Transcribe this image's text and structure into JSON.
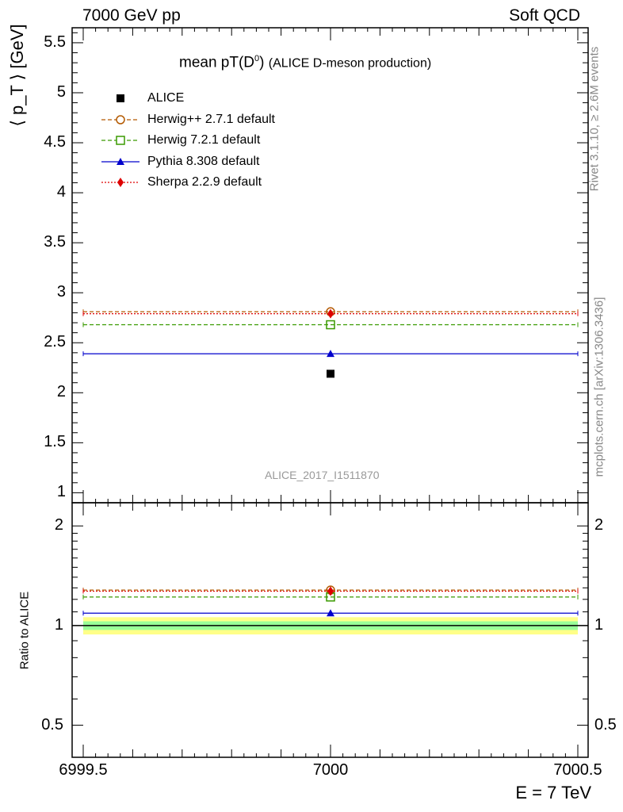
{
  "header": {
    "left": "7000 GeV pp",
    "right": "Soft QCD"
  },
  "title": {
    "main": "mean pT(D",
    "sup": "0",
    "close": ")",
    "sub": "(ALICE D-meson production)"
  },
  "side_labels": {
    "rivet": "Rivet 3.1.10, ≥ 2.6M events",
    "mcplots": "mcplots.cern.ch [arXiv:1306.3436]"
  },
  "watermark": "ALICE_2017_I1511870",
  "chart_data": [
    {
      "type": "scatter",
      "panel": "main",
      "ylabel": "⟨ p_T ⟩ [GeV]",
      "xlim": [
        6999.5,
        7000.5
      ],
      "ylim": [
        0.9,
        5.65
      ],
      "yticks": [
        1,
        1.5,
        2,
        2.5,
        3,
        3.5,
        4,
        4.5,
        5,
        5.5
      ],
      "ytick_labels": [
        "1",
        "1.5",
        "2",
        "2.5",
        "3",
        "3.5",
        "4",
        "4.5",
        "5",
        "5.5"
      ],
      "data": {
        "name": "ALICE",
        "x": 7000,
        "y": 2.19
      },
      "series": [
        {
          "name": "Herwig++ 2.7.1 default",
          "y": 2.81,
          "color": "#b35900",
          "marker": "circle-open",
          "line": "dashed"
        },
        {
          "name": "Herwig 7.2.1 default",
          "y": 2.68,
          "color": "#3a9a00",
          "marker": "square-open",
          "line": "dashed"
        },
        {
          "name": "Pythia 8.308 default",
          "y": 2.39,
          "color": "#0000cc",
          "marker": "triangle",
          "line": "solid"
        },
        {
          "name": "Sherpa 2.2.9 default",
          "y": 2.79,
          "color": "#dd0000",
          "marker": "diamond",
          "line": "dotted"
        }
      ],
      "legend": [
        {
          "label": "ALICE",
          "color": "#000000",
          "marker": "square-filled",
          "line": "none"
        },
        {
          "label": "Herwig++ 2.7.1 default",
          "color": "#b35900",
          "marker": "circle-open",
          "line": "dashed"
        },
        {
          "label": "Herwig 7.2.1 default",
          "color": "#3a9a00",
          "marker": "square-open",
          "line": "dashed"
        },
        {
          "label": "Pythia 8.308 default",
          "color": "#0000cc",
          "marker": "triangle",
          "line": "solid"
        },
        {
          "label": "Sherpa 2.2.9 default",
          "color": "#dd0000",
          "marker": "diamond",
          "line": "dotted"
        }
      ],
      "legend_position": "top-left"
    },
    {
      "type": "scatter",
      "panel": "ratio",
      "ylabel": "Ratio to ALICE",
      "xlabel": "E = 7 TeV",
      "xlim": [
        6999.5,
        7000.5
      ],
      "ylim": [
        0.4,
        2.35
      ],
      "yscale": "log",
      "yticks": [
        0.5,
        1,
        2
      ],
      "ytick_labels": [
        "0.5",
        "1",
        "2"
      ],
      "xticks": [
        6999.5,
        7000,
        7000.5
      ],
      "xtick_labels": [
        "6999.5",
        "7000",
        "7000.5"
      ],
      "band": {
        "green": [
          0.97,
          1.03
        ],
        "yellow": [
          0.94,
          1.06
        ],
        "green_color": "#99ff99",
        "yellow_color": "#ffff88"
      },
      "series": [
        {
          "name": "Herwig++ 2.7.1 default",
          "y": 1.28,
          "color": "#b35900",
          "marker": "circle-open",
          "line": "dashed"
        },
        {
          "name": "Herwig 7.2.1 default",
          "y": 1.22,
          "color": "#3a9a00",
          "marker": "square-open",
          "line": "dashed"
        },
        {
          "name": "Pythia 8.308 default",
          "y": 1.09,
          "color": "#0000cc",
          "marker": "triangle",
          "line": "solid"
        },
        {
          "name": "Sherpa 2.2.9 default",
          "y": 1.27,
          "color": "#dd0000",
          "marker": "diamond",
          "line": "dotted"
        }
      ]
    }
  ]
}
